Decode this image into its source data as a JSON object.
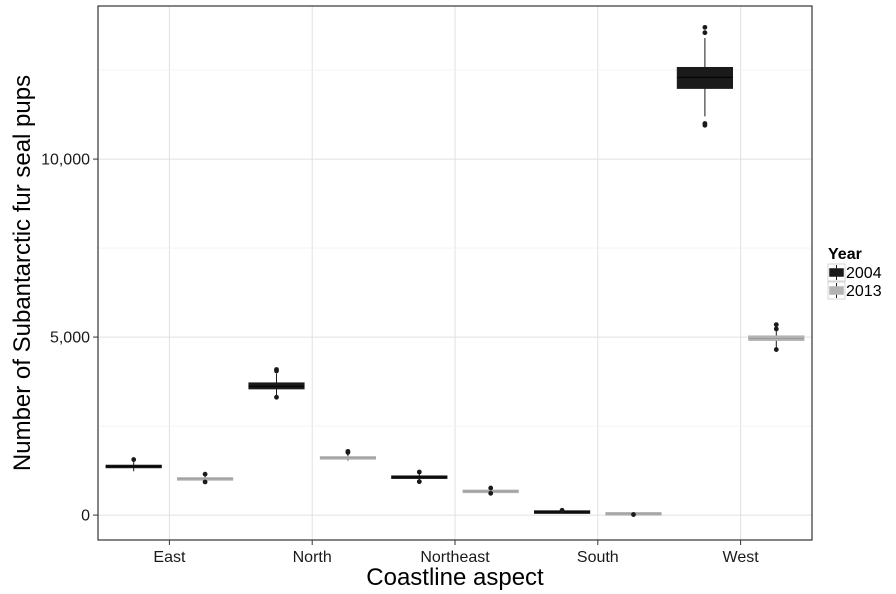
{
  "chart_data": {
    "type": "boxplot",
    "xlabel": "Coastline aspect",
    "ylabel": "Number of Subantarctic fur seal pups",
    "categories": [
      "East",
      "North",
      "Northeast",
      "South",
      "West"
    ],
    "y_ticks": [
      0,
      5000,
      10000
    ],
    "y_tick_labels": [
      "0",
      "5,000",
      "10,000"
    ],
    "ylim": [
      -700,
      14300
    ],
    "grid": true,
    "legend": {
      "title": "Year",
      "position": "right",
      "entries": [
        {
          "label": "2004",
          "color": "#1a1a1a"
        },
        {
          "label": "2013",
          "color": "#b3b3b3"
        }
      ]
    },
    "series": [
      {
        "name": "2004",
        "color": "#1a1a1a",
        "boxes": [
          {
            "category": "East",
            "q1": 1330,
            "median": 1370,
            "q3": 1400,
            "whisker_low": 1230,
            "whisker_high": 1520,
            "outliers": [
              1560
            ]
          },
          {
            "category": "North",
            "q1": 3540,
            "median": 3620,
            "q3": 3720,
            "whisker_low": 3360,
            "whisker_high": 3980,
            "outliers": [
              3310,
              4050,
              4090
            ]
          },
          {
            "category": "Northeast",
            "q1": 1030,
            "median": 1070,
            "q3": 1100,
            "whisker_low": 950,
            "whisker_high": 1180,
            "outliers": [
              940,
              1210
            ]
          },
          {
            "category": "South",
            "q1": 70,
            "median": 85,
            "q3": 100,
            "whisker_low": 55,
            "whisker_high": 125,
            "outliers": [
              135
            ]
          },
          {
            "category": "West",
            "q1": 11980,
            "median": 12300,
            "q3": 12580,
            "whisker_low": 11200,
            "whisker_high": 13400,
            "outliers": [
              10950,
              11000,
              13550,
              13700
            ]
          }
        ]
      },
      {
        "name": "2013",
        "color": "#b3b3b3",
        "boxes": [
          {
            "category": "East",
            "q1": 990,
            "median": 1020,
            "q3": 1040,
            "whisker_low": 950,
            "whisker_high": 1100,
            "outliers": [
              930,
              1150
            ]
          },
          {
            "category": "North",
            "q1": 1580,
            "median": 1610,
            "q3": 1630,
            "whisker_low": 1530,
            "whisker_high": 1720,
            "outliers": [
              1760,
              1790
            ]
          },
          {
            "category": "Northeast",
            "q1": 640,
            "median": 670,
            "q3": 690,
            "whisker_low": 600,
            "whisker_high": 730,
            "outliers": [
              610,
              760
            ]
          },
          {
            "category": "South",
            "q1": 20,
            "median": 35,
            "q3": 50,
            "whisker_low": 10,
            "whisker_high": 60,
            "outliers": [
              15
            ]
          },
          {
            "category": "West",
            "q1": 4900,
            "median": 4960,
            "q3": 5040,
            "whisker_low": 4700,
            "whisker_high": 5200,
            "outliers": [
              4650,
              5230,
              5350
            ]
          }
        ]
      }
    ]
  }
}
